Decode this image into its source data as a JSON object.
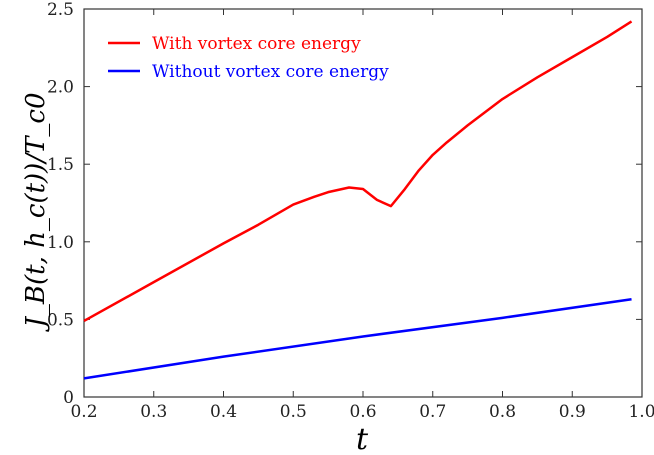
{
  "chart_data": {
    "type": "line",
    "xlabel": "t",
    "ylabel": "J_B(t, h_c(t))/T_c0",
    "xlim": [
      0.2,
      1.0
    ],
    "ylim": [
      0,
      2.5
    ],
    "xticks": [
      "0.2",
      "0.3",
      "0.4",
      "0.5",
      "0.6",
      "0.7",
      "0.8",
      "0.9",
      "1.0"
    ],
    "yticks": [
      "0",
      "0.5",
      "1.0",
      "1.5",
      "2.0",
      "2.5"
    ],
    "grid": false,
    "legend_position": "top-left",
    "series": [
      {
        "name": "With vortex core energy",
        "color": "#ff0000",
        "x": [
          0.2,
          0.3,
          0.4,
          0.45,
          0.5,
          0.53,
          0.55,
          0.58,
          0.6,
          0.62,
          0.64,
          0.66,
          0.68,
          0.7,
          0.72,
          0.75,
          0.8,
          0.85,
          0.9,
          0.95,
          0.985
        ],
        "y": [
          0.49,
          0.74,
          0.99,
          1.11,
          1.24,
          1.29,
          1.32,
          1.35,
          1.34,
          1.27,
          1.23,
          1.34,
          1.46,
          1.56,
          1.64,
          1.75,
          1.92,
          2.06,
          2.19,
          2.32,
          2.42
        ]
      },
      {
        "name": "Without vortex core energy",
        "color": "#0000ff",
        "x": [
          0.2,
          0.4,
          0.6,
          0.8,
          0.985
        ],
        "y": [
          0.12,
          0.26,
          0.39,
          0.51,
          0.63
        ]
      }
    ]
  }
}
